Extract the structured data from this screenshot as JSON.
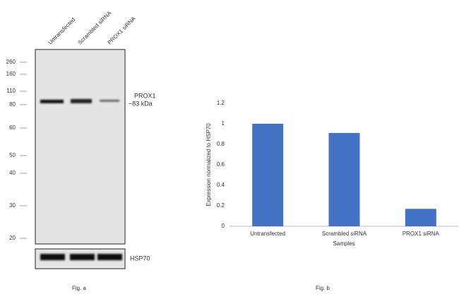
{
  "blot": {
    "lanes": [
      "Untransfected",
      "Scrambled siRNA",
      "PROX1 siRNA"
    ],
    "markers": [
      "260",
      "160",
      "110",
      "80",
      "60",
      "50",
      "40",
      "30",
      "20"
    ],
    "target": "PROX1",
    "target_size": "~83 kDa",
    "loading_control": "HSP70",
    "caption": "Fig. a"
  },
  "chart_data": {
    "type": "bar",
    "caption": "Fig. b",
    "x_label": "Samples",
    "y_label": "Expression normalized to HSP70",
    "categories": [
      "Untransfected",
      "Scrambled siRNA",
      "PROX1 siRNA"
    ],
    "values": [
      1,
      0.91,
      0.17
    ],
    "color": "#4472c4",
    "ylim": [
      0,
      1.2
    ],
    "yticks": [
      0,
      0.2,
      0.4,
      0.6,
      0.8,
      1,
      1.2
    ]
  }
}
